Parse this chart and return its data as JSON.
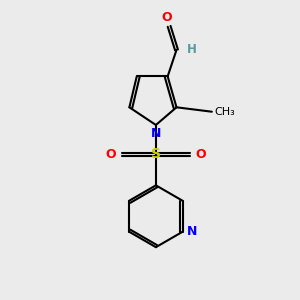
{
  "bg_color": "#ebebeb",
  "bond_color": "#000000",
  "N_color": "#0000ff",
  "O_color": "#ff0000",
  "S_color": "#cccc00",
  "H_color": "#5a9a9a",
  "line_width": 1.5,
  "fig_width": 3.0,
  "fig_height": 3.0,
  "dpi": 100,
  "xlim": [
    0,
    10
  ],
  "ylim": [
    0,
    10
  ]
}
